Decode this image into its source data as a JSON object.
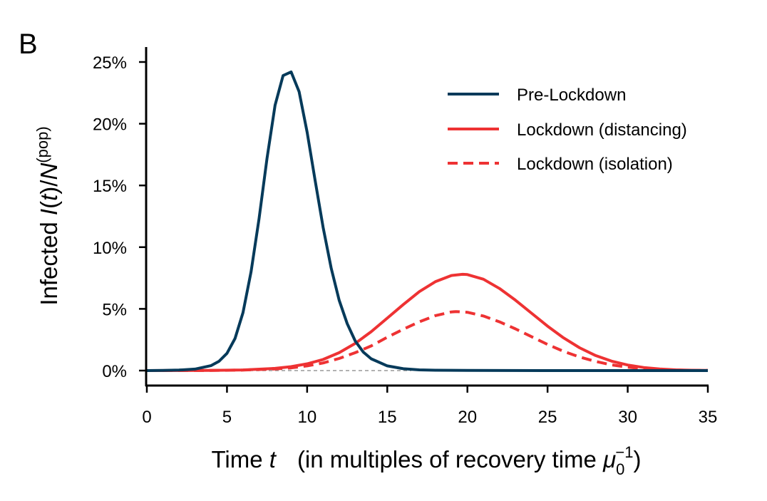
{
  "panel_label": "B",
  "chart_data": {
    "type": "line",
    "xlim": [
      0,
      35
    ],
    "ylim": [
      -1.2,
      25.5
    ],
    "x_ticks": [
      0,
      5,
      10,
      15,
      20,
      25,
      30,
      35
    ],
    "y_ticks": [
      0,
      5,
      10,
      15,
      20,
      25
    ],
    "x_tick_labels": [
      "0",
      "5",
      "10",
      "15",
      "20",
      "25",
      "30",
      "35"
    ],
    "y_tick_labels": [
      "0%",
      "5%",
      "10%",
      "15%",
      "20%",
      "25%"
    ],
    "xlabel": {
      "prefix": "Time ",
      "var": "t",
      "middle": "(in multiples of recovery time ",
      "symbol": "μ",
      "subscript": "0",
      "superscript": "−1",
      "suffix": ")"
    },
    "ylabel": {
      "prefix": "Infected ",
      "var1": "I",
      "paren_open": "(",
      "var2": "t",
      "paren_close": ")/",
      "var3": "N",
      "superscript": "(pop)"
    },
    "grid": false,
    "legend_position": "top-right",
    "reference_line": {
      "y": 0,
      "x_range": [
        0,
        16.5
      ],
      "color": "#999999",
      "style": "dashed"
    },
    "series": [
      {
        "name": "Pre-Lockdown",
        "color": "#053a5a",
        "style": "solid",
        "x": [
          0,
          1,
          2,
          3,
          4,
          4.5,
          5,
          5.5,
          6,
          6.5,
          7,
          7.5,
          8,
          8.5,
          9,
          9.5,
          10,
          10.5,
          11,
          11.5,
          12,
          12.5,
          13,
          13.5,
          14,
          15,
          16,
          17,
          18,
          20,
          25,
          30,
          35
        ],
        "y": [
          0,
          0.01,
          0.04,
          0.12,
          0.4,
          0.75,
          1.4,
          2.6,
          4.7,
          8.0,
          12.3,
          17.2,
          21.5,
          23.9,
          24.2,
          22.6,
          19.3,
          15.4,
          11.6,
          8.3,
          5.7,
          3.8,
          2.4,
          1.5,
          0.95,
          0.38,
          0.15,
          0.06,
          0.03,
          0.01,
          0,
          0,
          0
        ]
      },
      {
        "name": "Lockdown (distancing)",
        "color": "#ee3233",
        "style": "solid",
        "x": [
          0,
          4,
          6,
          8,
          9,
          10,
          11,
          12,
          13,
          14,
          15,
          16,
          17,
          18,
          19,
          19.7,
          20,
          21,
          22,
          23,
          24,
          25,
          26,
          27,
          28,
          29,
          30,
          31,
          32,
          33,
          34,
          35
        ],
        "y": [
          0,
          0.01,
          0.05,
          0.18,
          0.32,
          0.55,
          0.9,
          1.45,
          2.2,
          3.15,
          4.25,
          5.35,
          6.4,
          7.2,
          7.7,
          7.8,
          7.78,
          7.4,
          6.65,
          5.7,
          4.65,
          3.6,
          2.65,
          1.85,
          1.22,
          0.76,
          0.45,
          0.25,
          0.13,
          0.06,
          0.03,
          0.01
        ]
      },
      {
        "name": "Lockdown (isolation)",
        "color": "#ee3233",
        "style": "dashed",
        "x": [
          0,
          4,
          6,
          8,
          9,
          10,
          11,
          12,
          13,
          14,
          15,
          16,
          17,
          18,
          19,
          19.3,
          20,
          21,
          22,
          23,
          24,
          25,
          26,
          27,
          28,
          29,
          30,
          31,
          32,
          33,
          34,
          35
        ],
        "y": [
          0,
          0.01,
          0.04,
          0.13,
          0.22,
          0.38,
          0.62,
          0.98,
          1.45,
          2.0,
          2.7,
          3.35,
          3.95,
          4.45,
          4.75,
          4.78,
          4.72,
          4.42,
          3.95,
          3.38,
          2.75,
          2.12,
          1.56,
          1.1,
          0.74,
          0.46,
          0.27,
          0.15,
          0.08,
          0.04,
          0.02,
          0.01
        ]
      }
    ]
  }
}
